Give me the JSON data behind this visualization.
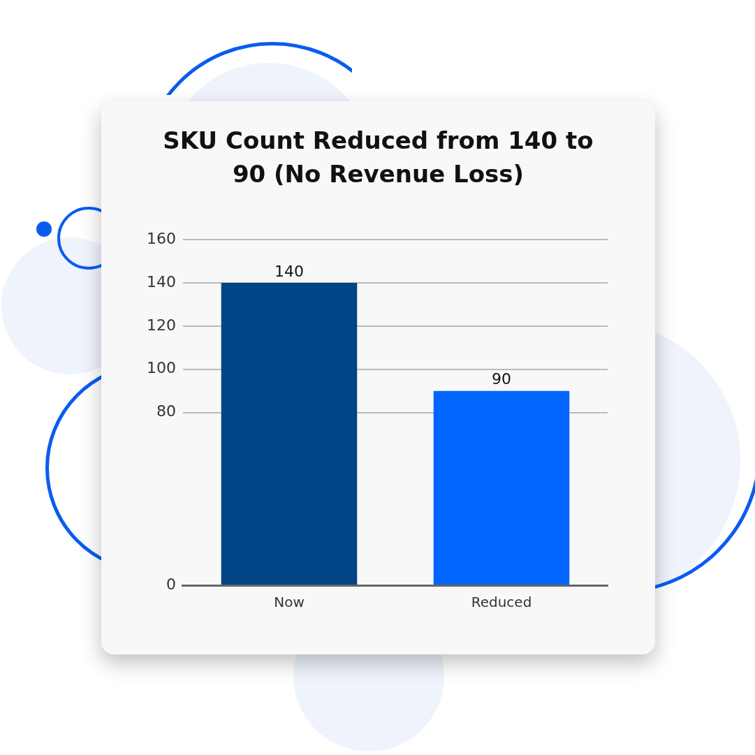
{
  "chart_data": {
    "type": "bar",
    "title": "SKU Count Reduced from 140 to 90 (No Revenue Loss)",
    "categories": [
      "Now",
      "Reduced"
    ],
    "values": [
      140,
      90
    ],
    "colors": [
      "#004585",
      "#0066ff"
    ],
    "ylim": [
      0,
      160
    ],
    "yticks": [
      0,
      80,
      100,
      120,
      140,
      160
    ],
    "grid": "y",
    "data_labels": true,
    "legend": false
  }
}
